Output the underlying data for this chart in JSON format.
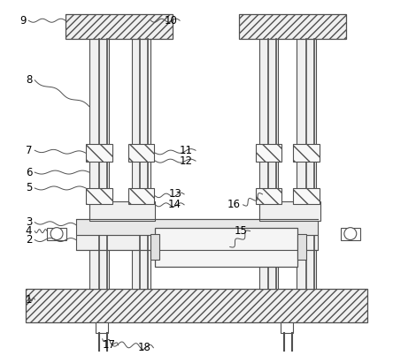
{
  "bg": "#ffffff",
  "lc": "#505050",
  "lw": 0.8,
  "fig_w": 4.44,
  "fig_h": 4.11,
  "dpi": 100
}
